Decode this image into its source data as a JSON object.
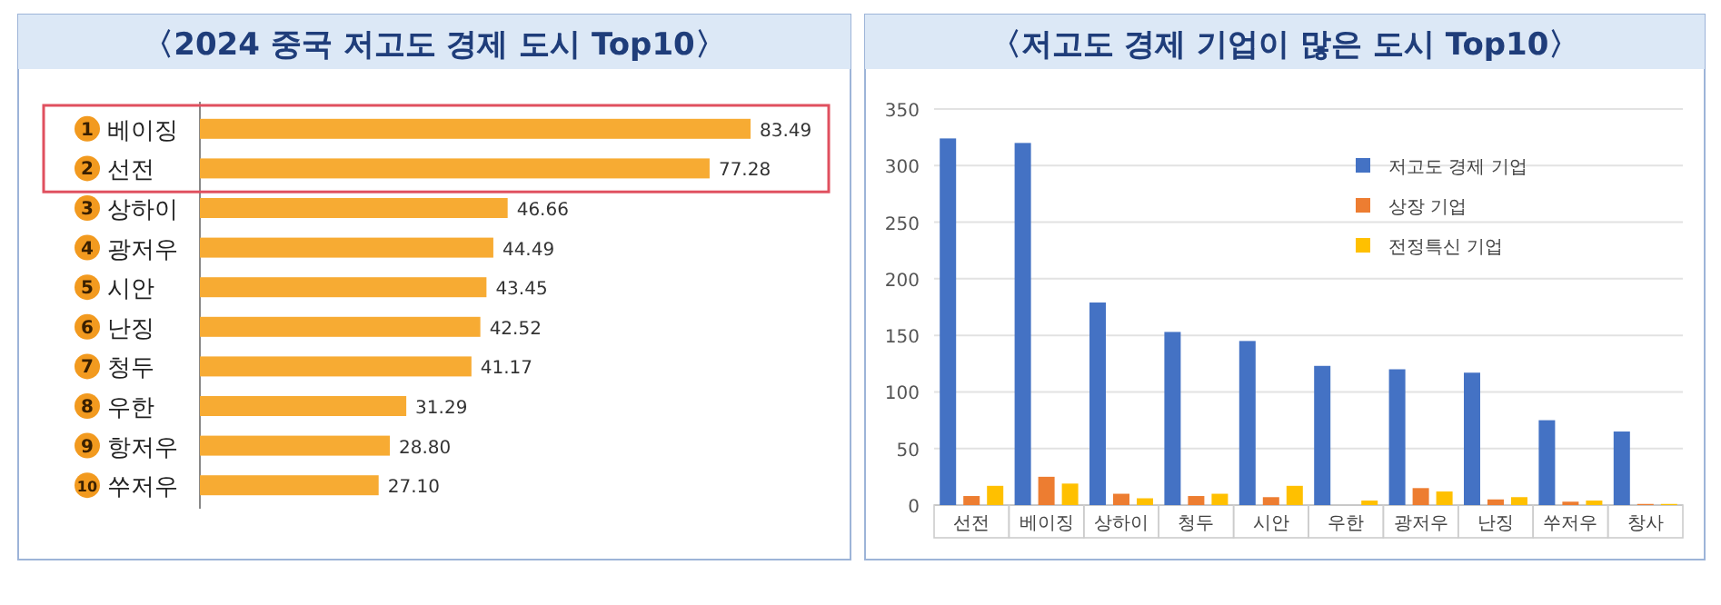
{
  "chart_data": [
    {
      "type": "bar",
      "orientation": "horizontal",
      "title": "〈2024 중국 저고도 경제 도시 Top10〉",
      "categories": [
        "1 베이징",
        "2 선전",
        "3 상하이",
        "4 광저우",
        "5 시안",
        "6 난징",
        "7 청두",
        "8 우한",
        "9 항저우",
        "10 쑤저우"
      ],
      "values": [
        83.49,
        77.28,
        46.66,
        44.49,
        43.45,
        42.52,
        41.17,
        31.29,
        28.8,
        27.1
      ],
      "value_labels": [
        "83.49",
        "77.28",
        "46.66",
        "44.49",
        "43.45",
        "42.52",
        "41.17",
        "31.29",
        "28.80",
        "27.10"
      ],
      "color": "#f7ab33"
    },
    {
      "type": "bar",
      "title": "〈저고도 경제 기업이 많은 도시 Top10〉",
      "categories": [
        "선전",
        "베이징",
        "상하이",
        "청두",
        "시안",
        "우한",
        "광저우",
        "난징",
        "쑤저우",
        "창사"
      ],
      "series": [
        {
          "name": "저고도 경제 기업",
          "color": "#4472c4",
          "values": [
            324,
            320,
            179,
            153,
            145,
            123,
            120,
            117,
            75,
            65
          ]
        },
        {
          "name": "상장 기업",
          "color": "#ed7d31",
          "values": [
            8,
            25,
            10,
            8,
            7,
            null,
            15,
            5,
            3,
            1
          ]
        },
        {
          "name": "전정특신 기업",
          "color": "#ffc000",
          "values": [
            17,
            19,
            6,
            10,
            17,
            4,
            12,
            7,
            4,
            1
          ]
        }
      ],
      "ylim": [
        0,
        350
      ],
      "yticks": [
        0,
        50,
        100,
        150,
        200,
        250,
        300,
        350
      ],
      "grid": "y",
      "legend": "top right"
    }
  ]
}
